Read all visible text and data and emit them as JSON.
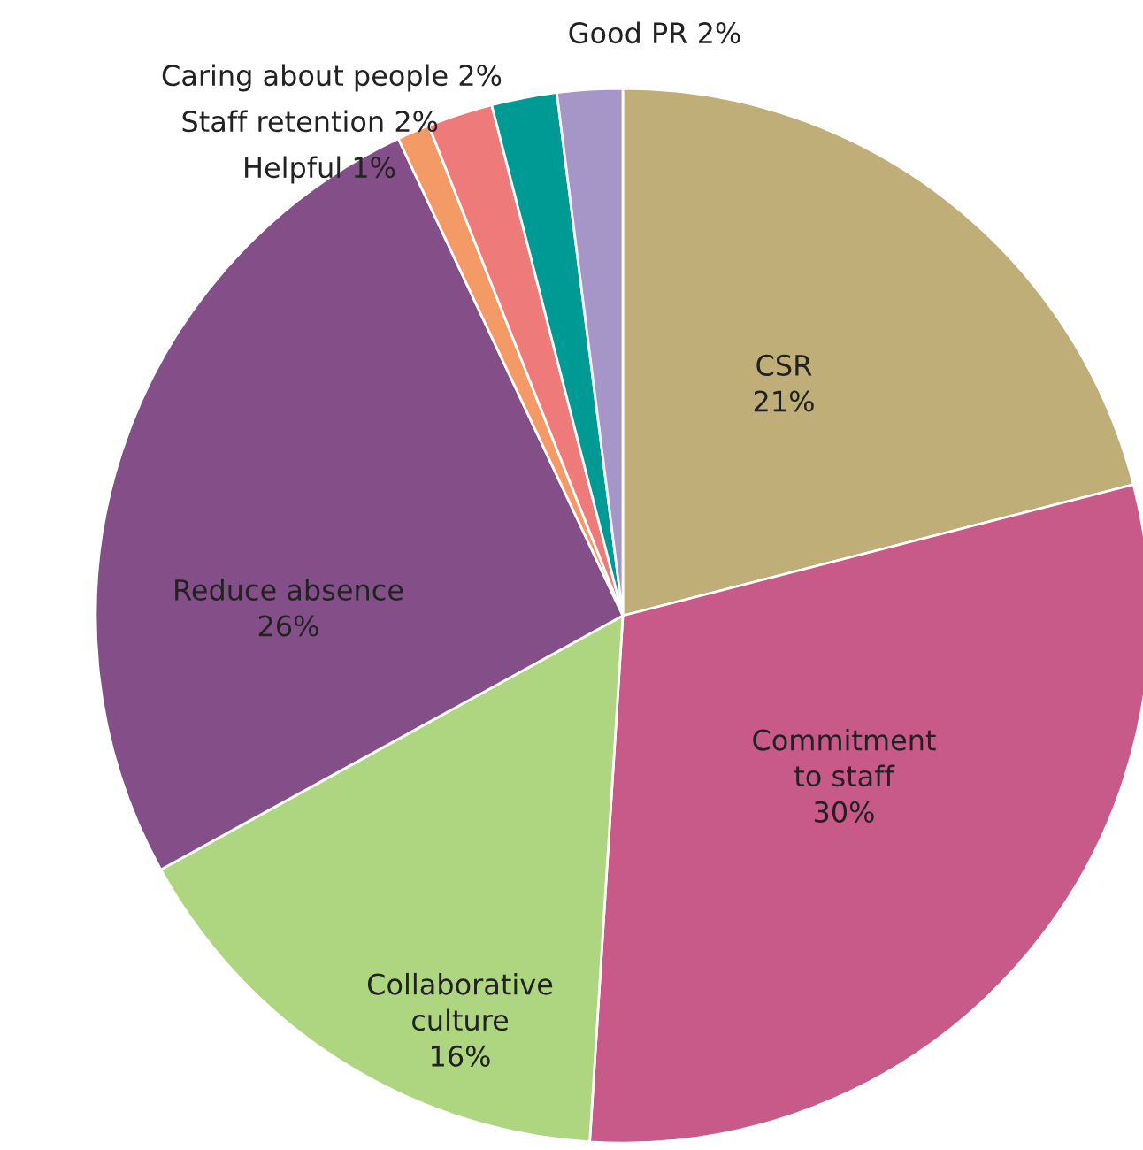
{
  "chart_data": {
    "type": "pie",
    "categories": [
      "CSR",
      "Commitment to staff",
      "Collaborative culture",
      "Reduce absence",
      "Helpful",
      "Staff retention",
      "Caring about people",
      "Good PR"
    ],
    "values": [
      21,
      30,
      16,
      26,
      1,
      2,
      2,
      2
    ],
    "value_labels": [
      "21%",
      "30%",
      "16%",
      "26%",
      "1%",
      "2%",
      "2%",
      "2%"
    ],
    "colors": [
      "#bfae78",
      "#c85a8a",
      "#aed580",
      "#844f88",
      "#f39a66",
      "#ef7a7a",
      "#009a94",
      "#a696c8"
    ]
  }
}
